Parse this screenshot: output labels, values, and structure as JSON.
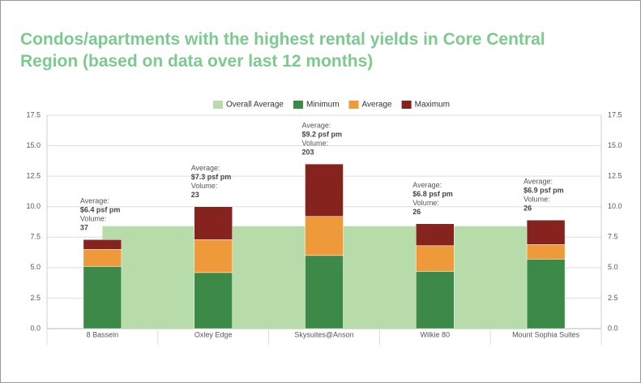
{
  "chart_data": {
    "type": "stacked_bar",
    "title": "Condos/apartments with the highest rental yields in Core Central Region (based on data over last 12 months)",
    "categories": [
      "8 Bassein",
      "Oxley Edge",
      "Skysuites@Anson",
      "Wilkie 80",
      "Mount Sophia Suites"
    ],
    "series": [
      {
        "name": "Overall Average",
        "color": "#b7dcaa",
        "kind": "area",
        "values": [
          8.4,
          8.4,
          8.4,
          8.4,
          8.4
        ]
      },
      {
        "name": "Minimum",
        "color": "#3d8a48",
        "values": [
          5.1,
          4.6,
          6.0,
          4.7,
          5.7
        ]
      },
      {
        "name": "Average",
        "color": "#ef9a3a",
        "values": [
          1.4,
          2.7,
          3.2,
          2.1,
          1.2
        ]
      },
      {
        "name": "Maximum",
        "color": "#86231e",
        "values": [
          0.8,
          2.7,
          4.3,
          1.8,
          2.0
        ]
      }
    ],
    "annotations": [
      [
        "Average:",
        "$6.4 psf pm",
        "Volume:",
        "37"
      ],
      [
        "Average:",
        "$7.3 psf pm",
        "Volume:",
        "23"
      ],
      [
        "Average:",
        "$9.2 psf pm",
        "Volume:",
        "203"
      ],
      [
        "Average:",
        "$6.8 psf pm",
        "Volume:",
        "26"
      ],
      [
        "Average:",
        "$6.9 psf pm",
        "Volume:",
        "26"
      ]
    ],
    "ylim": [
      0,
      17.5
    ],
    "yticks": [
      {
        "value": 0,
        "label": "0.0"
      },
      {
        "value": 2.5,
        "label": "2.5"
      },
      {
        "value": 5,
        "label": "5.0"
      },
      {
        "value": 7.5,
        "label": "7.5"
      },
      {
        "value": 10,
        "label": "10.0"
      },
      {
        "value": 12.5,
        "label": "12.5"
      },
      {
        "value": 15,
        "label": "15.0"
      },
      {
        "value": 17.5,
        "label": "17.5"
      }
    ],
    "y2lim": [
      0,
      17.5
    ],
    "y2ticks": [
      {
        "value": 0,
        "label": "0.0"
      },
      {
        "value": 2.5,
        "label": "2.5"
      },
      {
        "value": 5,
        "label": "5.0"
      },
      {
        "value": 7.5,
        "label": "7.5"
      },
      {
        "value": 10,
        "label": "10.0"
      },
      {
        "value": 12.5,
        "label": "12.5"
      },
      {
        "value": 15,
        "label": "15.0"
      },
      {
        "value": 17.5,
        "label": "17.5"
      }
    ],
    "grid": true,
    "legend": "top"
  }
}
